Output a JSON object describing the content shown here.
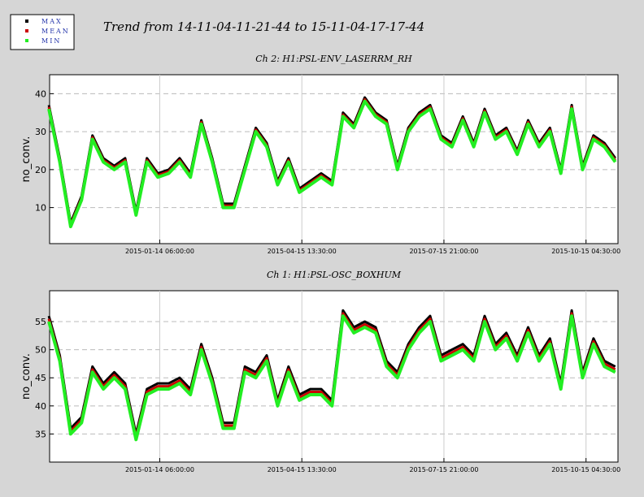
{
  "title": "Trend from 14-11-04-11-21-44 to 15-11-04-17-17-44",
  "chart_data": [
    {
      "type": "line",
      "title": "Ch 2: H1:PSL-ENV_LASERRM_RH",
      "ylabel": "no_conv.",
      "x": [
        "2014-11-04",
        "2014-11-11",
        "2014-11-18",
        "2014-11-25",
        "2014-12-02",
        "2014-12-09",
        "2014-12-16",
        "2014-12-23",
        "2014-12-30",
        "2015-01-06",
        "2015-01-13",
        "2015-01-20",
        "2015-01-27",
        "2015-02-03",
        "2015-02-10",
        "2015-02-17",
        "2015-02-24",
        "2015-03-03",
        "2015-03-10",
        "2015-03-17",
        "2015-03-24",
        "2015-03-31",
        "2015-04-07",
        "2015-04-14",
        "2015-04-21",
        "2015-04-28",
        "2015-05-05",
        "2015-05-12",
        "2015-05-19",
        "2015-05-26",
        "2015-06-02",
        "2015-06-09",
        "2015-06-16",
        "2015-06-23",
        "2015-06-30",
        "2015-07-07",
        "2015-07-14",
        "2015-07-21",
        "2015-07-28",
        "2015-08-04",
        "2015-08-11",
        "2015-08-18",
        "2015-08-25",
        "2015-09-01",
        "2015-09-08",
        "2015-09-15",
        "2015-09-22",
        "2015-09-29",
        "2015-10-06",
        "2015-10-13",
        "2015-10-20",
        "2015-10-27",
        "2015-11-03"
      ],
      "series": [
        {
          "name": "MAX",
          "color": "#000000",
          "values": [
            37,
            23,
            6,
            13,
            29,
            23,
            21,
            23,
            9,
            23,
            19,
            20,
            23,
            19,
            33,
            23,
            11,
            11,
            21,
            31,
            27,
            17,
            23,
            15,
            17,
            19,
            17,
            35,
            32,
            39,
            35,
            33,
            21,
            31,
            35,
            37,
            29,
            27,
            34,
            27,
            36,
            29,
            31,
            25,
            33,
            27,
            31,
            20,
            37,
            21,
            29,
            27,
            23
          ]
        },
        {
          "name": "MEAN",
          "color": "#cc0000",
          "values": [
            36.5,
            22.5,
            5.5,
            12.5,
            28.5,
            22.5,
            20.5,
            22.5,
            8.5,
            22.5,
            18.5,
            19.5,
            22.5,
            18.5,
            32.5,
            22.5,
            10.5,
            10.5,
            20.5,
            30.5,
            26.5,
            16.5,
            22.5,
            14.5,
            16.5,
            18.5,
            16.5,
            34.5,
            31.5,
            38.5,
            34.5,
            32.5,
            20.5,
            30.5,
            34.5,
            36.5,
            28.5,
            26.5,
            33.5,
            26.5,
            35.5,
            28.5,
            30.5,
            24.5,
            32.5,
            26.5,
            30.5,
            19.5,
            36.5,
            20.5,
            28.5,
            26.5,
            22.5
          ]
        },
        {
          "name": "MIN",
          "color": "#22ee22",
          "values": [
            36,
            22,
            5,
            12,
            28,
            22,
            20,
            22,
            8,
            22,
            18,
            19,
            22,
            18,
            32,
            22,
            10,
            10,
            20,
            30,
            26,
            16,
            22,
            14,
            16,
            18,
            16,
            34,
            31,
            38,
            34,
            32,
            20,
            30,
            34,
            36,
            28,
            26,
            33,
            26,
            35,
            28,
            30,
            24,
            32,
            26,
            30,
            19,
            36,
            20,
            28,
            26,
            22
          ]
        }
      ],
      "xlim": [
        "2014-11-04 11:21:44",
        "2015-11-04 17:17:44"
      ],
      "xticks": [
        "2015-01-14 06:00:00",
        "2015-04-15 13:30:00",
        "2015-07-15 21:00:00",
        "2015-10-15 04:30:00"
      ],
      "ylim": [
        0.5,
        45
      ],
      "yticks": [
        10,
        20,
        30,
        40
      ],
      "grid": true
    },
    {
      "type": "line",
      "title": "Ch 1: H1:PSL-OSC_BOXHUM",
      "ylabel": "no_conv.",
      "x": [
        "2014-11-04",
        "2014-11-11",
        "2014-11-18",
        "2014-11-25",
        "2014-12-02",
        "2014-12-09",
        "2014-12-16",
        "2014-12-23",
        "2014-12-30",
        "2015-01-06",
        "2015-01-13",
        "2015-01-20",
        "2015-01-27",
        "2015-02-03",
        "2015-02-10",
        "2015-02-17",
        "2015-02-24",
        "2015-03-03",
        "2015-03-10",
        "2015-03-17",
        "2015-03-24",
        "2015-03-31",
        "2015-04-07",
        "2015-04-14",
        "2015-04-21",
        "2015-04-28",
        "2015-05-05",
        "2015-05-12",
        "2015-05-19",
        "2015-05-26",
        "2015-06-02",
        "2015-06-09",
        "2015-06-16",
        "2015-06-23",
        "2015-06-30",
        "2015-07-07",
        "2015-07-14",
        "2015-07-21",
        "2015-07-28",
        "2015-08-04",
        "2015-08-11",
        "2015-08-18",
        "2015-08-25",
        "2015-09-01",
        "2015-09-08",
        "2015-09-15",
        "2015-09-22",
        "2015-09-29",
        "2015-10-06",
        "2015-10-13",
        "2015-10-20",
        "2015-10-27",
        "2015-11-03"
      ],
      "series": [
        {
          "name": "MAX",
          "color": "#000000",
          "values": [
            56,
            49,
            36,
            38,
            47,
            44,
            46,
            44,
            35,
            43,
            44,
            44,
            45,
            43,
            51,
            45,
            37,
            37,
            47,
            46,
            49,
            41,
            47,
            42,
            43,
            43,
            41,
            57,
            54,
            55,
            54,
            48,
            46,
            51,
            54,
            56,
            49,
            50,
            51,
            49,
            56,
            51,
            53,
            49,
            54,
            49,
            52,
            44,
            57,
            46,
            52,
            48,
            47
          ]
        },
        {
          "name": "MEAN",
          "color": "#cc0000",
          "values": [
            55.5,
            48.5,
            35.5,
            37.5,
            46.5,
            43.5,
            45.5,
            43.5,
            34.5,
            42.5,
            43.5,
            43.5,
            44.5,
            42.5,
            50.5,
            44.5,
            36.5,
            36.5,
            46.5,
            45.5,
            48.5,
            40.5,
            46.5,
            41.5,
            42.5,
            42.5,
            40.5,
            56.5,
            53.5,
            54.5,
            53.5,
            47.5,
            45.5,
            50.5,
            53.5,
            55.5,
            48.5,
            49.5,
            50.5,
            48.5,
            55.5,
            50.5,
            52.5,
            48.5,
            53.5,
            48.5,
            51.5,
            43.5,
            56.5,
            45.5,
            51.5,
            47.5,
            46.5
          ]
        },
        {
          "name": "MIN",
          "color": "#22ee22",
          "values": [
            55,
            48,
            35,
            37,
            46,
            43,
            45,
            43,
            34,
            42,
            43,
            43,
            44,
            42,
            50,
            44,
            36,
            36,
            46,
            45,
            48,
            40,
            46,
            41,
            42,
            42,
            40,
            56,
            53,
            54,
            53,
            47,
            45,
            50,
            53,
            55,
            48,
            49,
            50,
            48,
            55,
            50,
            52,
            48,
            53,
            48,
            51,
            43,
            56,
            45,
            51,
            47,
            46
          ]
        }
      ],
      "xlim": [
        "2014-11-04 11:21:44",
        "2015-11-04 17:17:44"
      ],
      "xticks": [
        "2015-01-14 06:00:00",
        "2015-04-15 13:30:00",
        "2015-07-15 21:00:00",
        "2015-10-15 04:30:00"
      ],
      "ylim": [
        30,
        60.5
      ],
      "yticks": [
        35,
        40,
        45,
        50,
        55
      ],
      "grid": true
    }
  ]
}
